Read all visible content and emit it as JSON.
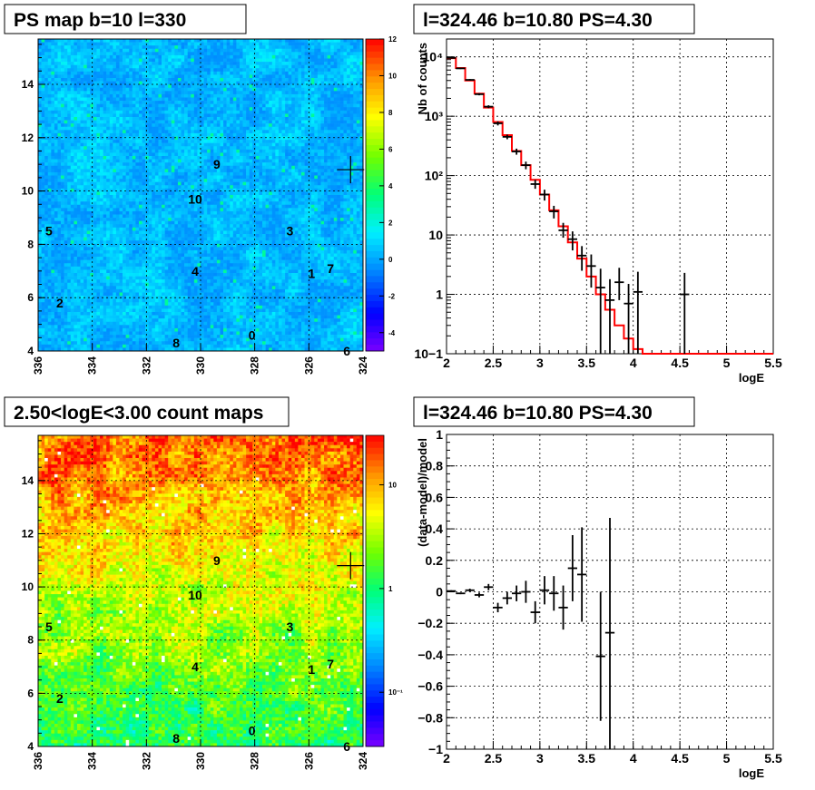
{
  "chart_data": [
    {
      "type": "heatmap",
      "title": "PS map b=10 l=330",
      "x_ticks": [
        "336",
        "334",
        "332",
        "330",
        "328",
        "326",
        "324"
      ],
      "x_tick_values": [
        336,
        334,
        332,
        330,
        328,
        326,
        324
      ],
      "xlim": [
        336,
        324
      ],
      "y_ticks": [
        "4",
        "6",
        "8",
        "10",
        "12",
        "14"
      ],
      "y_tick_values": [
        4,
        6,
        8,
        10,
        12,
        14
      ],
      "ylim": [
        4,
        15.7
      ],
      "z_ticks": [
        "12",
        "10",
        "8",
        "6",
        "4",
        "2",
        "0",
        "-2",
        "-4"
      ],
      "z_tick_values": [
        12,
        10,
        8,
        6,
        4,
        2,
        0,
        -2,
        -4
      ],
      "zlim": [
        -5,
        12
      ],
      "background_value": 0.5,
      "marker": {
        "l": 324.46,
        "b": 10.8
      },
      "sources": [
        {
          "label": "0",
          "l": 328.1,
          "b": 4.6
        },
        {
          "label": "1",
          "l": 325.9,
          "b": 6.9
        },
        {
          "label": "2",
          "l": 335.2,
          "b": 5.8
        },
        {
          "label": "3",
          "l": 326.7,
          "b": 8.5
        },
        {
          "label": "4",
          "l": 330.2,
          "b": 7.0
        },
        {
          "label": "5",
          "l": 335.6,
          "b": 8.5
        },
        {
          "label": "6",
          "l": 324.6,
          "b": 4.0
        },
        {
          "label": "7",
          "l": 325.2,
          "b": 7.1
        },
        {
          "label": "8",
          "l": 330.9,
          "b": 4.3
        },
        {
          "label": "9",
          "l": 329.4,
          "b": 11.0
        },
        {
          "label": "10",
          "l": 330.2,
          "b": 9.7
        }
      ],
      "grid": true
    },
    {
      "type": "line",
      "title": "l=324.46 b=10.80 PS=4.30",
      "xlabel": "logE",
      "ylabel": "Nb of counts",
      "xlim": [
        2,
        5.5
      ],
      "ylim": [
        0.1,
        20000
      ],
      "log_y": true,
      "x_ticks": [
        "2",
        "2.5",
        "3",
        "3.5",
        "4",
        "4.5",
        "5",
        "5.5"
      ],
      "x_tick_values": [
        2,
        2.5,
        3,
        3.5,
        4,
        4.5,
        5,
        5.5
      ],
      "y_ticks": [
        "10−1",
        "1",
        "10",
        "10²",
        "10³",
        "10⁴"
      ],
      "y_tick_values": [
        0.1,
        1,
        10,
        100,
        1000,
        10000
      ],
      "model_color": "#ff0000",
      "model_bin_edges": [
        2.0,
        2.1,
        2.2,
        2.3,
        2.4,
        2.5,
        2.6,
        2.7,
        2.8,
        2.9,
        3.0,
        3.1,
        3.2,
        3.3,
        3.4,
        3.5,
        3.6,
        3.7,
        3.8,
        3.9,
        4.0,
        4.1,
        4.2,
        4.3,
        5.5
      ],
      "model_values": [
        9500,
        6500,
        4000,
        2400,
        1400,
        800,
        480,
        260,
        150,
        85,
        48,
        26,
        14,
        7.5,
        4,
        2,
        1,
        0.55,
        0.3,
        0.18,
        0.12,
        0.1,
        0.1,
        0.1
      ],
      "data_points": [
        {
          "x": 2.05,
          "y": 9600,
          "ylo": 9400,
          "yhi": 9800
        },
        {
          "x": 2.15,
          "y": 6400,
          "ylo": 6230,
          "yhi": 6570
        },
        {
          "x": 2.25,
          "y": 4100,
          "ylo": 3970,
          "yhi": 4230
        },
        {
          "x": 2.35,
          "y": 2350,
          "ylo": 2250,
          "yhi": 2450
        },
        {
          "x": 2.45,
          "y": 1450,
          "ylo": 1370,
          "yhi": 1530
        },
        {
          "x": 2.55,
          "y": 760,
          "ylo": 700,
          "yhi": 820
        },
        {
          "x": 2.65,
          "y": 450,
          "ylo": 410,
          "yhi": 490
        },
        {
          "x": 2.75,
          "y": 255,
          "ylo": 225,
          "yhi": 285
        },
        {
          "x": 2.85,
          "y": 150,
          "ylo": 128,
          "yhi": 172
        },
        {
          "x": 2.95,
          "y": 72,
          "ylo": 60,
          "yhi": 85
        },
        {
          "x": 3.05,
          "y": 48,
          "ylo": 38,
          "yhi": 58
        },
        {
          "x": 3.15,
          "y": 25,
          "ylo": 19,
          "yhi": 31
        },
        {
          "x": 3.25,
          "y": 12,
          "ylo": 9,
          "yhi": 16
        },
        {
          "x": 3.35,
          "y": 8.5,
          "ylo": 5.5,
          "yhi": 11.5
        },
        {
          "x": 3.45,
          "y": 4.5,
          "ylo": 2.5,
          "yhi": 6.5
        },
        {
          "x": 3.55,
          "y": 3,
          "ylo": 1.3,
          "yhi": 4.7
        },
        {
          "x": 3.65,
          "y": 1.3,
          "ylo": 0.1,
          "yhi": 2.7
        },
        {
          "x": 3.75,
          "y": 0.8,
          "ylo": 0.1,
          "yhi": 1.8
        },
        {
          "x": 3.85,
          "y": 1.6,
          "ylo": 0.8,
          "yhi": 2.8
        },
        {
          "x": 3.95,
          "y": 0.7,
          "ylo": 0.1,
          "yhi": 1.5
        },
        {
          "x": 4.05,
          "y": 1.1,
          "ylo": 0.1,
          "yhi": 2.4
        },
        {
          "x": 4.55,
          "y": 1,
          "ylo": 0.1,
          "yhi": 2.3
        }
      ],
      "grid": true
    },
    {
      "type": "heatmap",
      "title": "2.50<logE<3.00 count maps",
      "x_ticks": [
        "336",
        "334",
        "332",
        "330",
        "328",
        "326",
        "324"
      ],
      "x_tick_values": [
        336,
        334,
        332,
        330,
        328,
        326,
        324
      ],
      "xlim": [
        336,
        324
      ],
      "y_ticks": [
        "4",
        "6",
        "8",
        "10",
        "12",
        "14"
      ],
      "y_tick_values": [
        4,
        6,
        8,
        10,
        12,
        14
      ],
      "ylim": [
        4,
        15.7
      ],
      "z_ticks": [
        "10",
        "1",
        "10⁻¹"
      ],
      "z_tick_values": [
        10,
        1,
        0.1
      ],
      "zlim": [
        0.03,
        30
      ],
      "log_z": true,
      "marker": {
        "l": 324.46,
        "b": 10.8
      },
      "sources": [
        {
          "label": "0",
          "l": 328.1,
          "b": 4.6
        },
        {
          "label": "1",
          "l": 325.9,
          "b": 6.9
        },
        {
          "label": "2",
          "l": 335.2,
          "b": 5.8
        },
        {
          "label": "3",
          "l": 326.7,
          "b": 8.5
        },
        {
          "label": "4",
          "l": 330.2,
          "b": 7.0
        },
        {
          "label": "5",
          "l": 335.6,
          "b": 8.5
        },
        {
          "label": "6",
          "l": 324.6,
          "b": 4.0
        },
        {
          "label": "7",
          "l": 325.2,
          "b": 7.1
        },
        {
          "label": "8",
          "l": 330.9,
          "b": 4.3
        },
        {
          "label": "9",
          "l": 329.4,
          "b": 11.0
        },
        {
          "label": "10",
          "l": 330.2,
          "b": 9.7
        }
      ],
      "grid": true
    },
    {
      "type": "scatter",
      "title": "l=324.46 b=10.80 PS=4.30",
      "xlabel": "logE",
      "ylabel": "(data-model)/model",
      "xlim": [
        2,
        5.5
      ],
      "ylim": [
        -1,
        1
      ],
      "x_ticks": [
        "2",
        "2.5",
        "3",
        "3.5",
        "4",
        "4.5",
        "5",
        "5.5"
      ],
      "x_tick_values": [
        2,
        2.5,
        3,
        3.5,
        4,
        4.5,
        5,
        5.5
      ],
      "y_ticks": [
        "1",
        "0.8",
        "0.6",
        "0.4",
        "0.2",
        "0",
        "−0.2",
        "−0.4",
        "−0.6",
        "−0.8",
        "−1"
      ],
      "y_tick_values": [
        1,
        0.8,
        0.6,
        0.4,
        0.2,
        0,
        -0.2,
        -0.4,
        -0.6,
        -0.8,
        -1
      ],
      "data_points": [
        {
          "x": 2.05,
          "y": 0.005,
          "ylo": 0.0,
          "yhi": 0.01
        },
        {
          "x": 2.15,
          "y": -0.01,
          "ylo": -0.015,
          "yhi": -0.005
        },
        {
          "x": 2.25,
          "y": 0.01,
          "ylo": 0.0,
          "yhi": 0.02
        },
        {
          "x": 2.35,
          "y": -0.02,
          "ylo": -0.035,
          "yhi": -0.005
        },
        {
          "x": 2.45,
          "y": 0.03,
          "ylo": 0.01,
          "yhi": 0.05
        },
        {
          "x": 2.55,
          "y": -0.1,
          "ylo": -0.13,
          "yhi": -0.07
        },
        {
          "x": 2.65,
          "y": -0.04,
          "ylo": -0.08,
          "yhi": 0.0
        },
        {
          "x": 2.75,
          "y": -0.01,
          "ylo": -0.06,
          "yhi": 0.04
        },
        {
          "x": 2.85,
          "y": 0.0,
          "ylo": -0.07,
          "yhi": 0.07
        },
        {
          "x": 2.95,
          "y": -0.13,
          "ylo": -0.2,
          "yhi": -0.06
        },
        {
          "x": 3.05,
          "y": 0.01,
          "ylo": -0.08,
          "yhi": 0.1
        },
        {
          "x": 3.15,
          "y": -0.01,
          "ylo": -0.12,
          "yhi": 0.1
        },
        {
          "x": 3.25,
          "y": -0.1,
          "ylo": -0.24,
          "yhi": 0.04
        },
        {
          "x": 3.35,
          "y": 0.15,
          "ylo": -0.06,
          "yhi": 0.36
        },
        {
          "x": 3.45,
          "y": 0.11,
          "ylo": -0.19,
          "yhi": 0.41
        },
        {
          "x": 3.65,
          "y": -0.41,
          "ylo": -0.82,
          "yhi": 0.0
        },
        {
          "x": 3.75,
          "y": -0.26,
          "ylo": -1.0,
          "yhi": 0.47
        }
      ],
      "grid": true
    }
  ]
}
